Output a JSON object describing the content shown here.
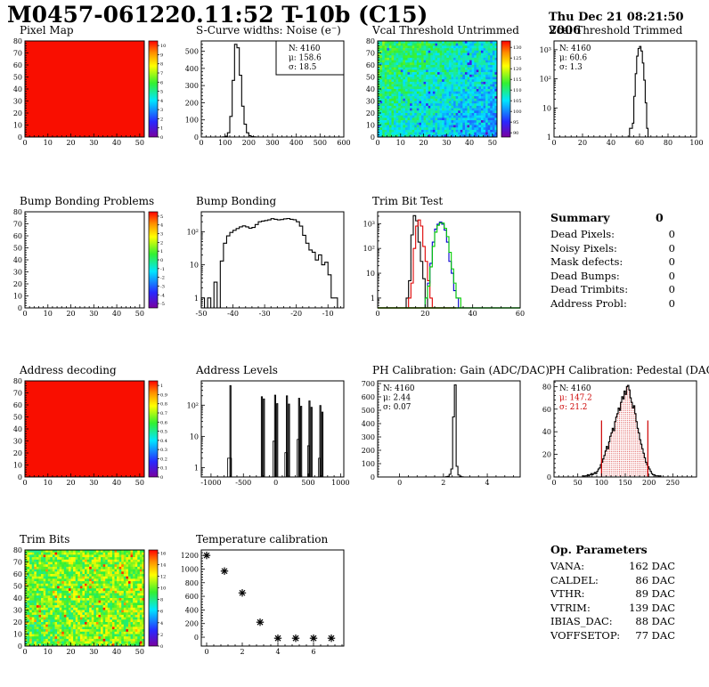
{
  "header": {
    "title": "M0457-061220.11:52 T-10b (C15)",
    "date": "Thu Dec 21 08:21:50 2006"
  },
  "summary": {
    "title": "Summary",
    "total": "0",
    "rows": [
      {
        "label": "Dead Pixels:",
        "value": "0"
      },
      {
        "label": "Noisy Pixels:",
        "value": "0"
      },
      {
        "label": "Mask defects:",
        "value": "0"
      },
      {
        "label": "Dead Bumps:",
        "value": "0"
      },
      {
        "label": "Dead Trimbits:",
        "value": "0"
      },
      {
        "label": "Address Probl:",
        "value": "0"
      }
    ]
  },
  "op_parameters": {
    "title": "Op. Parameters",
    "rows": [
      {
        "label": "VANA:",
        "value": "162 DAC"
      },
      {
        "label": "CALDEL:",
        "value": "86 DAC"
      },
      {
        "label": "VTHR:",
        "value": "89 DAC"
      },
      {
        "label": "VTRIM:",
        "value": "139 DAC"
      },
      {
        "label": "IBIAS_DAC:",
        "value": "88 DAC"
      },
      {
        "label": "VOFFSETOP:",
        "value": "77 DAC"
      }
    ]
  },
  "palette": {
    "accent_red": "#cc0000",
    "map_red": "#f90e00"
  },
  "chart_data": [
    {
      "type": "heatmap",
      "title": "Pixel Map",
      "x_range": [
        0,
        52
      ],
      "y_range": [
        0,
        80
      ],
      "xticks": [
        0,
        10,
        20,
        30,
        40,
        50
      ],
      "yticks": [
        0,
        10,
        20,
        30,
        40,
        50,
        60,
        70,
        80
      ],
      "colorbar": {
        "z_range": [
          0,
          10.5
        ],
        "ticks": [
          {
            "v": 0,
            "label": "0"
          },
          {
            "v": 1,
            "label": "1"
          },
          {
            "v": 2,
            "label": "2"
          },
          {
            "v": 3,
            "label": "3"
          },
          {
            "v": 4,
            "label": "4"
          },
          {
            "v": 5,
            "label": "5"
          },
          {
            "v": 6,
            "label": "6"
          },
          {
            "v": 7,
            "label": "7"
          },
          {
            "v": 8,
            "label": "8"
          },
          {
            "v": 9,
            "label": "9"
          },
          {
            "v": 10,
            "label": "10"
          }
        ]
      },
      "fill": "uniform"
    },
    {
      "type": "hist",
      "title": "S-Curve widths: Noise (e⁻)",
      "x_range": [
        0,
        600
      ],
      "y_range": [
        0,
        560
      ],
      "xticks": [
        0,
        100,
        200,
        300,
        400,
        500,
        600
      ],
      "yticks": [
        0,
        100,
        200,
        300,
        400,
        500
      ],
      "bin_start": 90,
      "bin_width": 10,
      "values": [
        1,
        5,
        25,
        120,
        330,
        540,
        520,
        360,
        180,
        75,
        25,
        8,
        2,
        1
      ],
      "stats": {
        "pos": "tr",
        "box": true,
        "lines": [
          {
            "text": "N: 4160",
            "color": "#000000"
          },
          {
            "text": "μ: 158.6",
            "color": "#000000"
          },
          {
            "text": "σ: 18.5",
            "color": "#000000"
          }
        ]
      }
    },
    {
      "type": "heatmap",
      "title": "Vcal Threshold Untrimmed",
      "x_range": [
        0,
        52
      ],
      "y_range": [
        0,
        80
      ],
      "xticks": [
        0,
        10,
        20,
        30,
        40,
        50
      ],
      "yticks": [
        0,
        10,
        20,
        30,
        40,
        50,
        60,
        70,
        80
      ],
      "colorbar": {
        "z_range": [
          88,
          133
        ],
        "ticks": [
          {
            "v": 90,
            "label": "90"
          },
          {
            "v": 95,
            "label": "95"
          },
          {
            "v": 100,
            "label": "100"
          },
          {
            "v": 105,
            "label": "105"
          },
          {
            "v": 110,
            "label": "110"
          },
          {
            "v": 115,
            "label": "115"
          },
          {
            "v": 120,
            "label": "120"
          },
          {
            "v": 125,
            "label": "125"
          },
          {
            "v": 130,
            "label": "130"
          }
        ]
      },
      "fill": "noise",
      "grid": {
        "nx": 52,
        "ny": 40,
        "seed": 7,
        "base": 108,
        "trend_x": -7,
        "trend_y": 5,
        "noise": 5,
        "outlier_frac": 0.03,
        "outlier_shift": -9
      }
    },
    {
      "type": "hist_log",
      "title": "Vcal Threshold Trimmed",
      "x_range": [
        0,
        100
      ],
      "y_range": [
        1,
        2000
      ],
      "xticks": [
        0,
        20,
        40,
        60,
        80,
        100
      ],
      "yticks": [
        {
          "v": 1,
          "label": "1"
        },
        {
          "v": 10,
          "label": "10"
        },
        {
          "v": 100,
          "label": "10²"
        },
        {
          "v": 1000,
          "label": "10³"
        }
      ],
      "bin_start": 53,
      "bin_width": 1,
      "values": [
        2,
        2,
        3,
        25,
        150,
        600,
        1100,
        1300,
        900,
        350,
        90,
        15,
        2
      ],
      "stats": {
        "pos": "tl",
        "box": false,
        "lines": [
          {
            "text": "N: 4160",
            "color": "#000000"
          },
          {
            "text": "μ: 60.6",
            "color": "#000000"
          },
          {
            "text": "σ:  1.3",
            "color": "#000000"
          }
        ]
      }
    },
    {
      "type": "empty_map",
      "title": "Bump Bonding Problems",
      "x_range": [
        0,
        52
      ],
      "y_range": [
        0,
        80
      ],
      "xticks": [
        0,
        10,
        20,
        30,
        40,
        50
      ],
      "yticks": [
        0,
        10,
        20,
        30,
        40,
        50,
        60,
        70,
        80
      ],
      "colorbar": {
        "z_range": [
          -5.5,
          5.5
        ],
        "ticks": [
          {
            "v": -5,
            "label": "-5"
          },
          {
            "v": -4,
            "label": "-4"
          },
          {
            "v": -3,
            "label": "-3"
          },
          {
            "v": -2,
            "label": "-2"
          },
          {
            "v": -1,
            "label": "-1"
          },
          {
            "v": 0,
            "label": "0"
          },
          {
            "v": 1,
            "label": "1"
          },
          {
            "v": 2,
            "label": "2"
          },
          {
            "v": 3,
            "label": "3"
          },
          {
            "v": 4,
            "label": "4"
          },
          {
            "v": 5,
            "label": "5"
          }
        ]
      }
    },
    {
      "type": "hist_log",
      "title": "Bump Bonding",
      "x_range": [
        -50,
        -5
      ],
      "y_range": [
        0.5,
        400
      ],
      "xticks": [
        -50,
        -40,
        -30,
        -20,
        -10
      ],
      "yticks": [
        {
          "v": 1,
          "label": "1"
        },
        {
          "v": 10,
          "label": "10"
        },
        {
          "v": 100,
          "label": "10²"
        }
      ],
      "bin_start": -50,
      "bin_width": 1,
      "values": [
        1,
        0,
        1,
        0,
        3,
        0,
        13,
        45,
        75,
        95,
        110,
        125,
        140,
        150,
        140,
        128,
        135,
        165,
        200,
        210,
        218,
        228,
        248,
        238,
        228,
        233,
        245,
        250,
        238,
        230,
        200,
        148,
        78,
        45,
        28,
        24,
        14,
        20,
        10,
        12,
        5,
        1,
        1
      ]
    },
    {
      "type": "multi_hist_log",
      "title": "Trim Bit Test",
      "x_range": [
        0,
        60
      ],
      "y_range": [
        0.4,
        3000
      ],
      "xticks": [
        0,
        20,
        40,
        60
      ],
      "yticks": [
        {
          "v": 1,
          "label": "1"
        },
        {
          "v": 10,
          "label": "10"
        },
        {
          "v": 100,
          "label": "10²"
        },
        {
          "v": 1000,
          "label": "10³"
        }
      ],
      "series": [
        {
          "name": "trim-bit-0",
          "color": "#000000",
          "bin_start": 12,
          "bin_width": 1,
          "values": [
            1,
            5,
            350,
            2100,
            1300,
            180,
            30,
            6,
            1
          ]
        },
        {
          "name": "trim-bit-1",
          "color": "#dd0000",
          "bin_start": 13,
          "bin_width": 1,
          "values": [
            1,
            4,
            100,
            800,
            1400,
            800,
            120,
            30,
            5,
            1
          ],
          "baseline": [
            0,
            33
          ]
        },
        {
          "name": "trim-bit-2",
          "color": "#0000cc",
          "bin_start": 20,
          "bin_width": 1,
          "values": [
            1,
            4,
            25,
            180,
            600,
            950,
            1150,
            950,
            550,
            180,
            30,
            10,
            2,
            1
          ]
        },
        {
          "name": "trim-bit-3",
          "color": "#00cc00",
          "bin_start": 20,
          "bin_width": 1,
          "values": [
            1,
            3,
            18,
            120,
            450,
            850,
            1050,
            1050,
            650,
            300,
            70,
            15,
            4,
            1,
            1
          ],
          "baseline": [
            0,
            60
          ]
        }
      ]
    },
    {
      "type": "heatmap",
      "title": "Address decoding",
      "x_range": [
        0,
        52
      ],
      "y_range": [
        0,
        80
      ],
      "xticks": [
        0,
        10,
        20,
        30,
        40,
        50
      ],
      "yticks": [
        0,
        10,
        20,
        30,
        40,
        50,
        60,
        70,
        80
      ],
      "colorbar": {
        "z_range": [
          0,
          1.05
        ],
        "ticks": [
          {
            "v": 0,
            "label": "0"
          },
          {
            "v": 0.1,
            "label": "0.1"
          },
          {
            "v": 0.2,
            "label": "0.2"
          },
          {
            "v": 0.3,
            "label": "0.3"
          },
          {
            "v": 0.4,
            "label": "0.4"
          },
          {
            "v": 0.5,
            "label": "0.5"
          },
          {
            "v": 0.6,
            "label": "0.6"
          },
          {
            "v": 0.7,
            "label": "0.7"
          },
          {
            "v": 0.8,
            "label": "0.8"
          },
          {
            "v": 0.9,
            "label": "0.9"
          },
          {
            "v": 1,
            "label": "1"
          }
        ]
      },
      "fill": "uniform"
    },
    {
      "type": "spikes_log",
      "title": "Address Levels",
      "x_range": [
        -1150,
        1050
      ],
      "y_range": [
        0.5,
        600
      ],
      "xticks": [
        -1000,
        -500,
        0,
        500,
        1000
      ],
      "yticks": [
        {
          "v": 1,
          "label": "1"
        },
        {
          "v": 10,
          "label": "10"
        },
        {
          "v": 100,
          "label": "10²"
        }
      ],
      "spike_width": 16,
      "spikes": [
        [
          -700,
          420
        ],
        [
          -215,
          185
        ],
        [
          -183,
          158
        ],
        [
          -10,
          208
        ],
        [
          22,
          112
        ],
        [
          172,
          198
        ],
        [
          204,
          108
        ],
        [
          360,
          165
        ],
        [
          392,
          92
        ],
        [
          520,
          136
        ],
        [
          552,
          85
        ],
        [
          688,
          97
        ],
        [
          720,
          60
        ]
      ],
      "feet": [
        [
          -745,
          -684,
          2
        ],
        [
          -45,
          -12,
          7
        ],
        [
          140,
          170,
          3
        ],
        [
          330,
          358,
          8
        ],
        [
          492,
          518,
          5
        ],
        [
          660,
          686,
          2
        ]
      ]
    },
    {
      "type": "hist",
      "title": "PH Calibration: Gain (ADC/DAC)",
      "x_range": [
        -1,
        5.5
      ],
      "y_range": [
        0,
        720
      ],
      "xticks": [
        0,
        2,
        4
      ],
      "yticks": [
        0,
        100,
        200,
        300,
        400,
        500,
        600,
        700
      ],
      "bin_start": 2.1,
      "bin_width": 0.08,
      "values": [
        2,
        5,
        20,
        60,
        450,
        690,
        80,
        15,
        3,
        1
      ],
      "stats": {
        "pos": "tl",
        "box": false,
        "lines": [
          {
            "text": "N: 4160",
            "color": "#000000"
          },
          {
            "text": "μ: 2.44",
            "color": "#000000"
          },
          {
            "text": "σ: 0.07",
            "color": "#000000"
          }
        ]
      }
    },
    {
      "type": "hist",
      "title": "PH Calibration: Pedestal (DAC)",
      "x_range": [
        0,
        300
      ],
      "y_range": [
        0,
        85
      ],
      "xticks": [
        0,
        50,
        100,
        150,
        200,
        250
      ],
      "yticks": [
        0,
        20,
        40,
        60,
        80
      ],
      "bin_start": 60,
      "bin_width": 2.5,
      "values": [
        1,
        0,
        1,
        1,
        2,
        1,
        2,
        3,
        2,
        3,
        4,
        3,
        5,
        7,
        8,
        11,
        13,
        16,
        19,
        23,
        27,
        25,
        31,
        36,
        39,
        43,
        41,
        49,
        53,
        56,
        61,
        59,
        66,
        71,
        69,
        76,
        73,
        80,
        81,
        77,
        70,
        66,
        61,
        63,
        56,
        49,
        43,
        39,
        33,
        29,
        25,
        21,
        17,
        13,
        11,
        9,
        7,
        5,
        3,
        2,
        2,
        1,
        1,
        1,
        0,
        1,
        0
      ],
      "red_fill": {
        "x_min": 100,
        "x_max": 197.5,
        "color": "#cc0000"
      },
      "vlines": [
        {
          "x": 100,
          "h": 50,
          "color": "#cc0000"
        },
        {
          "x": 197.5,
          "h": 50,
          "color": "#cc0000"
        }
      ],
      "stats": {
        "pos": "tl",
        "box": false,
        "lines": [
          {
            "text": "N: 4160",
            "color": "#000000"
          },
          {
            "text": "μ: 147.2",
            "color": "#cc0000"
          },
          {
            "text": "σ: 21.2",
            "color": "#cc0000"
          }
        ]
      }
    },
    {
      "type": "heatmap",
      "title": "Trim Bits",
      "x_range": [
        0,
        52
      ],
      "y_range": [
        0,
        80
      ],
      "xticks": [
        0,
        10,
        20,
        30,
        40,
        50
      ],
      "yticks": [
        0,
        10,
        20,
        30,
        40,
        50,
        60,
        70,
        80
      ],
      "colorbar": {
        "z_range": [
          0,
          16.5
        ],
        "ticks": [
          {
            "v": 0,
            "label": "0"
          },
          {
            "v": 2,
            "label": "2"
          },
          {
            "v": 4,
            "label": "4"
          },
          {
            "v": 6,
            "label": "6"
          },
          {
            "v": 8,
            "label": "8"
          },
          {
            "v": 10,
            "label": "10"
          },
          {
            "v": 12,
            "label": "12"
          },
          {
            "v": 14,
            "label": "14"
          },
          {
            "v": 16,
            "label": "16"
          }
        ]
      },
      "fill": "noise",
      "grid": {
        "nx": 52,
        "ny": 40,
        "seed": 13,
        "base": 9.6,
        "trend_x": 0.8,
        "trend_y": 0.4,
        "noise": 2.3,
        "outlier_frac": 0.05,
        "outlier_shift": 4
      }
    },
    {
      "type": "scatter",
      "title": "Temperature calibration",
      "x_range": [
        -0.3,
        7.7
      ],
      "y_range": [
        -130,
        1280
      ],
      "xticks": [
        0,
        2,
        4,
        6
      ],
      "yticks": [
        0,
        200,
        400,
        600,
        800,
        1000,
        1200
      ],
      "points": [
        [
          0,
          1200
        ],
        [
          1,
          970
        ],
        [
          2,
          650
        ],
        [
          3,
          220
        ],
        [
          4,
          -15
        ],
        [
          5,
          -15
        ],
        [
          6,
          -15
        ],
        [
          7,
          -15
        ]
      ],
      "marker": "asterisk"
    }
  ]
}
